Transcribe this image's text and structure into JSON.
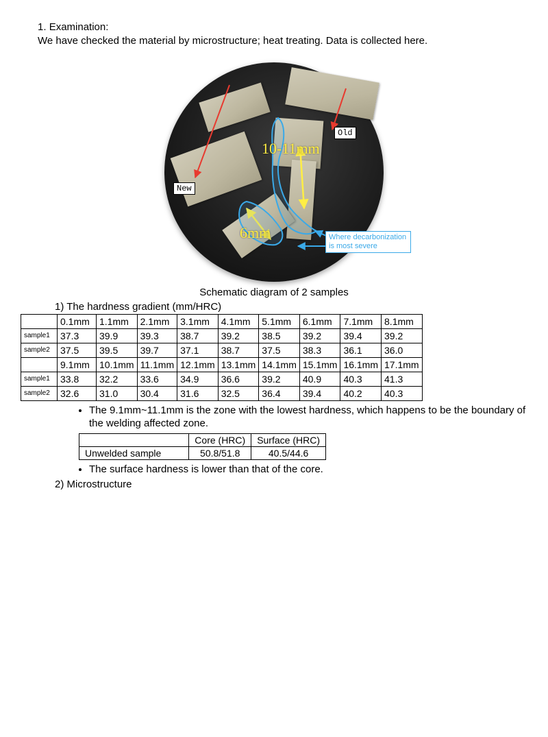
{
  "intro": {
    "number": "1.",
    "title": "Examination:",
    "text": "We have checked the material by microstructure; heat treating. Data is collected here."
  },
  "diagram": {
    "new_label": "New",
    "old_label": "Old",
    "dim1": "10-11mm",
    "dim2": "6mm",
    "decarbon_note": "Where decarbonization is most severe",
    "caption": "Schematic diagram of 2 samples",
    "colors": {
      "arrow_red": "#e83a2f",
      "arrow_yellow": "#ffee44",
      "arrow_blue": "#3aa9e8",
      "outline_blue": "#3aa9e8"
    }
  },
  "hardness": {
    "section_title": "1) The hardness gradient (mm/HRC)",
    "row_labels": [
      "sample1",
      "sample2",
      "sample1",
      "sample2"
    ],
    "headers_top": [
      "0.1mm",
      "1.1mm",
      "2.1mm",
      "3.1mm",
      "4.1mm",
      "5.1mm",
      "6.1mm",
      "7.1mm",
      "8.1mm"
    ],
    "headers_bot": [
      "9.1mm",
      "10.1mm",
      "11.1mm",
      "12.1mm",
      "13.1mm",
      "14.1mm",
      "15.1mm",
      "16.1mm",
      "17.1mm"
    ],
    "rows": [
      [
        "37.3",
        "39.9",
        "39.3",
        "38.7",
        "39.2",
        "38.5",
        "39.2",
        "39.4",
        "39.2"
      ],
      [
        "37.5",
        "39.5",
        "39.7",
        "37.1",
        "38.7",
        "37.5",
        "38.3",
        "36.1",
        "36.0"
      ],
      [
        "33.8",
        "32.2",
        "33.6",
        "34.9",
        "36.6",
        "39.2",
        "40.9",
        "40.3",
        "41.3"
      ],
      [
        "32.6",
        "31.0",
        "30.4",
        "31.6",
        "32.5",
        "36.4",
        "39.4",
        "40.2",
        "40.3"
      ]
    ],
    "bullet1": "The 9.1mm~11.1mm is the zone with the lowest hardness, which happens to be the boundary of the welding affected zone.",
    "bullet2": "The surface hardness is lower than that of the core."
  },
  "core_table": {
    "col1": "Core (HRC)",
    "col2": "Surface (HRC)",
    "rowlabel": "Unwelded sample",
    "val1": "50.8/51.8",
    "val2": "40.5/44.6"
  },
  "micro": {
    "title": "2) Microstructure"
  }
}
